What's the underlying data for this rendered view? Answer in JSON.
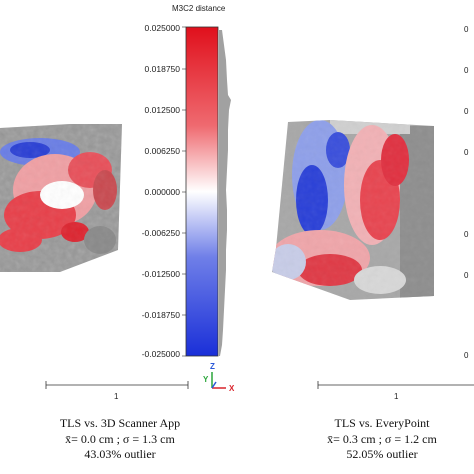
{
  "colorbar": {
    "title": "M3C2 distance",
    "ticks": [
      "0.025000",
      "0.018750",
      "0.012500",
      "0.006250",
      "0.000000",
      "-0.006250",
      "-0.012500",
      "-0.018750",
      "-0.025000"
    ],
    "colors": {
      "max": "#e0101c",
      "mid": "#ffffff",
      "min": "#1a2fd8"
    }
  },
  "left_panel": {
    "scale_label": "1",
    "caption": {
      "title": "TLS vs. 3D Scanner App",
      "stats": "x̄= 0.0 cm ; σ = 1.3 cm",
      "outlier": "43.03% outlier"
    }
  },
  "right_panel": {
    "scale_label": "1",
    "caption": {
      "title": "TLS vs. EveryPoint",
      "stats": "x̄= 0.3 cm ; σ = 1.2 cm",
      "outlier": "52.05% outlier"
    }
  },
  "axis_gizmo": {
    "z": "Z",
    "y": "Y",
    "x": "X"
  },
  "right_edge_ticks": [
    "0",
    "0",
    "0",
    "0",
    "0",
    "0",
    "0"
  ]
}
